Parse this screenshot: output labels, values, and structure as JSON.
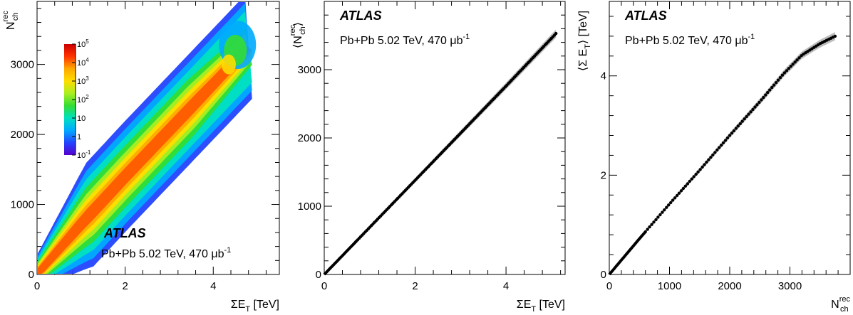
{
  "chart_data": [
    {
      "type": "heatmap",
      "xlabel_main": "ΣE",
      "xlabel_sub": "T",
      "xlabel_unit": " [TeV]",
      "ylabel_main": "N",
      "ylabel_sup": "rec",
      "ylabel_sub": "ch",
      "xlim": [
        0,
        5.5
      ],
      "ylim": [
        0,
        3900
      ],
      "xticks": [
        {
          "v": 0,
          "t": "0"
        },
        {
          "v": 2,
          "t": "2"
        },
        {
          "v": 4,
          "t": "4"
        }
      ],
      "yticks": [
        {
          "v": 0,
          "t": "0"
        },
        {
          "v": 1000,
          "t": "1000"
        },
        {
          "v": 2000,
          "t": "2000"
        },
        {
          "v": 3000,
          "t": "3000"
        }
      ],
      "atlas_label": "ATLAS",
      "info_label": "Pb+Pb 5.02 TeV, 470 μb",
      "info_sup": "-1",
      "colorbar": {
        "scale": "log",
        "range": [
          0.1,
          100000
        ],
        "ticks": [
          {
            "base": "10",
            "exp": "5"
          },
          {
            "base": "10",
            "exp": "4"
          },
          {
            "base": "10",
            "exp": "3"
          },
          {
            "base": "10",
            "exp": "2"
          },
          {
            "base": "10",
            "exp": ""
          },
          {
            "base": "1",
            "exp": ""
          },
          {
            "base": "10",
            "exp": "-1"
          }
        ]
      },
      "density_ridge": [
        [
          0,
          0
        ],
        [
          1,
          720
        ],
        [
          2,
          1400
        ],
        [
          3,
          2060
        ],
        [
          4,
          2720
        ],
        [
          4.8,
          3250
        ]
      ]
    },
    {
      "type": "scatter",
      "xlabel_main": "ΣE",
      "xlabel_sub": "T",
      "xlabel_unit": " [TeV]",
      "ylabel_left": "⟨N",
      "ylabel_sup": "rec",
      "ylabel_sub": "ch",
      "ylabel_right": "⟩",
      "xlim": [
        0,
        5.3
      ],
      "ylim": [
        0,
        4000
      ],
      "xticks": [
        {
          "v": 0,
          "t": "0"
        },
        {
          "v": 2,
          "t": "2"
        },
        {
          "v": 4,
          "t": "4"
        }
      ],
      "yticks": [
        {
          "v": 0,
          "t": "0"
        },
        {
          "v": 1000,
          "t": "1000"
        },
        {
          "v": 2000,
          "t": "2000"
        },
        {
          "v": 3000,
          "t": "3000"
        }
      ],
      "atlas_label": "ATLAS",
      "info_label": "Pb+Pb 5.02 TeV, 470 μb",
      "info_sup": "-1",
      "x_range": [
        0,
        5.1
      ],
      "y_at_x": [
        [
          0,
          0
        ],
        [
          1,
          690
        ],
        [
          2,
          1380
        ],
        [
          3,
          2070
        ],
        [
          4,
          2760
        ],
        [
          5.1,
          3530
        ]
      ],
      "band_color": "#bdbdbd"
    },
    {
      "type": "scatter",
      "xlabel_main": "N",
      "xlabel_sup": "rec",
      "xlabel_sub": "ch",
      "ylabel_left": "⟨Σ E",
      "ylabel_sub": "T",
      "ylabel_right": "⟩ [TeV]",
      "xlim": [
        0,
        4000
      ],
      "ylim": [
        0,
        5.5
      ],
      "xticks": [
        {
          "v": 0,
          "t": "0"
        },
        {
          "v": 1000,
          "t": "1000"
        },
        {
          "v": 2000,
          "t": "2000"
        },
        {
          "v": 3000,
          "t": "3000"
        }
      ],
      "yticks": [
        {
          "v": 0,
          "t": "0"
        },
        {
          "v": 2,
          "t": "2"
        },
        {
          "v": 4,
          "t": "4"
        }
      ],
      "atlas_label": "ATLAS",
      "info_label": "Pb+Pb 5.02 TeV, 470 μb",
      "info_sup": "-1",
      "x_range": [
        0,
        3750
      ],
      "y_at_x": [
        [
          0,
          0
        ],
        [
          500,
          0.72
        ],
        [
          1000,
          1.42
        ],
        [
          1500,
          2.1
        ],
        [
          2000,
          2.8
        ],
        [
          2500,
          3.48
        ],
        [
          2900,
          4.05
        ],
        [
          3200,
          4.42
        ],
        [
          3500,
          4.65
        ],
        [
          3750,
          4.8
        ]
      ],
      "band_color": "#bdbdbd"
    }
  ]
}
